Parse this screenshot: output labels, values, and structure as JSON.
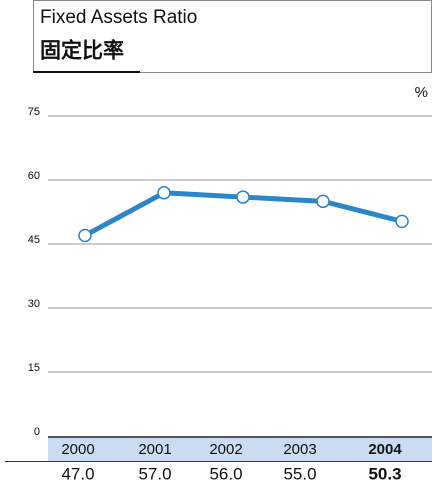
{
  "chart_data": {
    "type": "line",
    "title": "Fixed Assets Ratio",
    "subtitle": "固定比率",
    "unit": "%",
    "categories": [
      "2000",
      "2001",
      "2002",
      "2003",
      "2004"
    ],
    "values": [
      47.0,
      57.0,
      56.0,
      55.0,
      50.3
    ],
    "value_labels": [
      "47.0",
      "57.0",
      "56.0",
      "55.0",
      "50.3"
    ],
    "color": "#2a86c9",
    "ylim": [
      0,
      75
    ],
    "yticks": [
      0,
      15,
      30,
      45,
      60,
      75
    ],
    "grid": true
  }
}
